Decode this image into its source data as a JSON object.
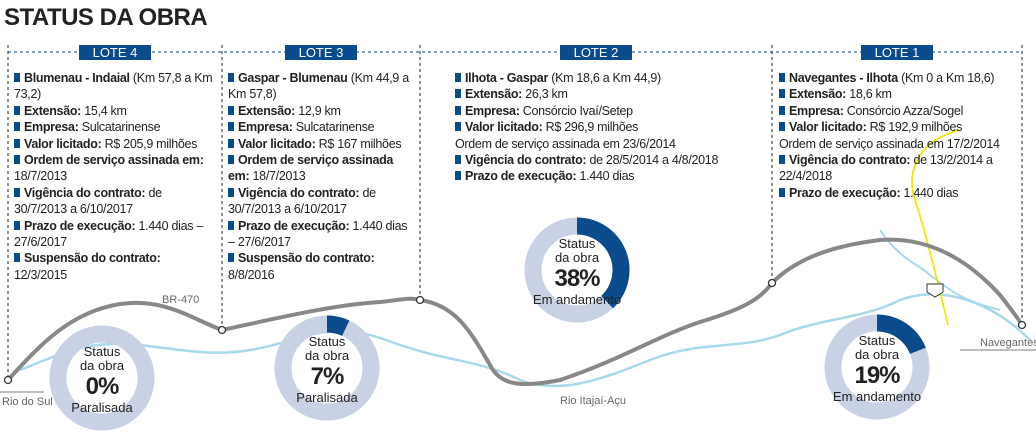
{
  "title": "STATUS DA OBRA",
  "lots": [
    {
      "label": "LOTE 4",
      "items": [
        {
          "label": "Blumenau - Indaial",
          "value": "(Km 57,8 a Km 73,2)"
        },
        {
          "label": "Extensão:",
          "value": "15,4 km"
        },
        {
          "label": "Empresa:",
          "value": "Sulcatarinense"
        },
        {
          "label": "Valor licitado:",
          "value": "R$ 205,9 milhões"
        },
        {
          "label": "Ordem de serviço assinada em:",
          "value": "18/7/2013"
        },
        {
          "label": "Vigência do contrato:",
          "value": "de 30/7/2013 a 6/10/2017"
        },
        {
          "label": "Prazo de execução:",
          "value": "1.440 dias – 27/6/2017"
        },
        {
          "label": "Suspensão do contrato:",
          "value": "12/3/2015"
        }
      ],
      "status": {
        "caption": "Status da obra",
        "percent": {
          "value": 0,
          "label": "0%"
        },
        "state": "Paralisada"
      }
    },
    {
      "label": "LOTE 3",
      "items": [
        {
          "label": "Gaspar - Blumenau",
          "value": "(Km 44,9 a Km 57,8)"
        },
        {
          "label": "Extensão:",
          "value": "12,9 km"
        },
        {
          "label": "Empresa:",
          "value": "Sulcatarinense"
        },
        {
          "label": "Valor licitado:",
          "value": "R$ 167 milhões"
        },
        {
          "label": "Ordem de serviço assinada em:",
          "value": "18/7/2013"
        },
        {
          "label": "Vigência do contrato:",
          "value": "de 30/7/2013 a 6/10/2017"
        },
        {
          "label": "Prazo de execução:",
          "value": "1.440 dias – 27/6/2017"
        },
        {
          "label": "Suspensão do contrato:",
          "value": "8/8/2016"
        }
      ],
      "status": {
        "caption": "Status da obra",
        "percent": {
          "value": 7,
          "label": "7%"
        },
        "state": "Paralisada"
      }
    },
    {
      "label": "LOTE 2",
      "items": [
        {
          "label": "Ilhota - Gaspar",
          "value": "(Km 18,6 a Km 44,9)"
        },
        {
          "label": "Extensão:",
          "value": "26,3 km"
        },
        {
          "label": "Empresa:",
          "value": "Consórcio Ivaí/Setep"
        },
        {
          "label": "Valor licitado:",
          "value": "R$ 296,9 milhões"
        },
        {
          "text": "Ordem de serviço assinada em 23/6/2014"
        },
        {
          "label": "Vigência do contrato:",
          "value": "de 28/5/2014 a 4/8/2018"
        },
        {
          "label": "Prazo de execução:",
          "value": "1.440 dias"
        }
      ],
      "status": {
        "caption": "Status da obra",
        "percent": {
          "value": 38,
          "label": "38%"
        },
        "state": "Em andamento"
      }
    },
    {
      "label": "LOTE 1",
      "items": [
        {
          "label": "Navegantes - Ilhota",
          "value": "(Km 0 a Km 18,6)"
        },
        {
          "label": "Extensão:",
          "value": "18,6 km"
        },
        {
          "label": "Empresa:",
          "value": "Consórcio Azza/Sogel"
        },
        {
          "label": "Valor licitado:",
          "value": "R$ 192,9 milhões"
        },
        {
          "text": "Ordem de serviço assinada em 17/2/2014"
        },
        {
          "label": "Vigência do contrato:",
          "value": "de 13/2/2014 a 22/4/2018"
        },
        {
          "label": "Prazo de execução:",
          "value": "1.440 dias"
        }
      ],
      "status": {
        "caption": "Status da obra",
        "percent": {
          "value": 19,
          "label": "19%"
        },
        "state": "Em andamento"
      }
    }
  ],
  "map_labels": {
    "road": "BR-470",
    "start": "Rio do Sul",
    "river": "Rio Itajaí-Açu",
    "end": "Navegantes"
  }
}
